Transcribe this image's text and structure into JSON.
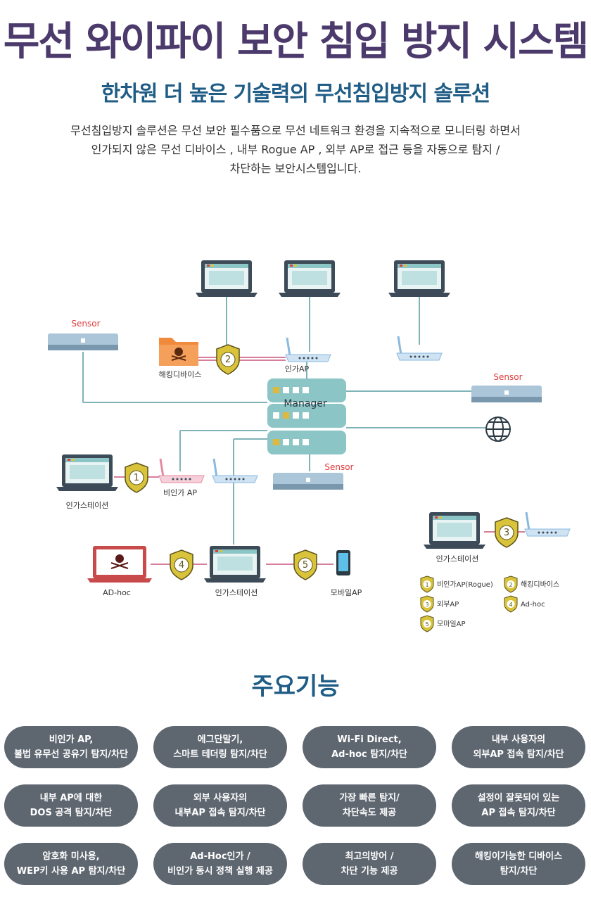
{
  "header": {
    "title": "무선 와이파이 보안 침입 방지 시스템",
    "subtitle": "한차원 더 높은 기술력의 무선침입방지 솔루션",
    "description": [
      "무선침입방지 솔루션은 무선 보안 필수품으로 무선 네트워크 환경을 지속적으로 모니터링 하면서",
      "인가되지 않은 무선 디바이스 , 내부 Rogue AP , 외부 AP로 접근 등을 자동으로 탐지 /",
      "차단하는 보안시스템입니다."
    ]
  },
  "diagram": {
    "manager_label": "Manager",
    "sensor_label": "Sensor",
    "labels": {
      "hacking_device": "해킹디바이스",
      "authorized_ap": "인가AP",
      "unauthorized_ap": "비인가 AP",
      "authorized_station": "인가스테이션",
      "adhoc": "AD-hoc",
      "mobile_ap": "모바일AP"
    },
    "shield_numbers": [
      "1",
      "2",
      "3",
      "4",
      "5"
    ],
    "legend": [
      {
        "num": "1",
        "label": "비인가AP(Rogue)"
      },
      {
        "num": "2",
        "label": "해킹디바이스"
      },
      {
        "num": "3",
        "label": "외부AP"
      },
      {
        "num": "4",
        "label": "Ad-hoc"
      },
      {
        "num": "5",
        "label": "모마일AP"
      }
    ],
    "colors": {
      "teal": "#8cc5c5",
      "dark_screen": "#3d4b58",
      "sensor_red": "#e03c3c",
      "shield": "#d9c33b",
      "adhoc_red": "#c94a4a",
      "folder_orange": "#f08a3c"
    }
  },
  "features_section": {
    "title": "주요기능",
    "items": [
      {
        "line1": "비인가 AP,",
        "line2": "불법 유무선 공유기 탐지/차단"
      },
      {
        "line1": "에그단말기,",
        "line2": "스마트 테더링 탐지/차단"
      },
      {
        "line1": "Wi-Fi Direct,",
        "line2": "Ad-hoc 탐지/차단"
      },
      {
        "line1": "내부 사용자의",
        "line2": "외부AP 접속 탐지/차단"
      },
      {
        "line1": "내부 AP에 대한",
        "line2": "DOS 공격 탐지/차단"
      },
      {
        "line1": "외부 사용자의",
        "line2": "내부AP 접속 탐지/차단"
      },
      {
        "line1": "가장 빠른 탐지/",
        "line2": "차단속도 제공"
      },
      {
        "line1": "설정이 잘못되어 있는",
        "line2": "AP 접속 탐지/차단"
      },
      {
        "line1": "암호화 미사용,",
        "line2": "WEP키 사용 AP 탐지/차단"
      },
      {
        "line1": "Ad-Hoc인가 /",
        "line2": "비인가 동시 정책 실행 제공"
      },
      {
        "line1": "최고의방어 /",
        "line2": "차단 기능 제공"
      },
      {
        "line1": "해킹이가능한  디바이스",
        "line2": "탐지/차단"
      }
    ]
  }
}
